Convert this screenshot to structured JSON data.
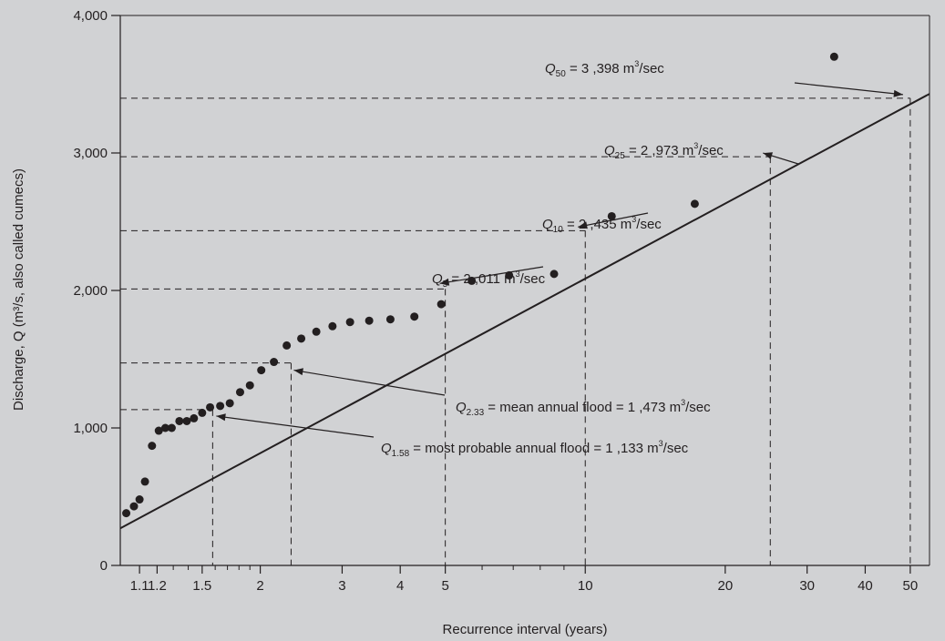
{
  "chart_data": {
    "type": "scatter",
    "xscale": "log",
    "xlabel": "Recurrence interval (years)",
    "ylabel": "Discharge, Q (m³/s, also called cumecs)",
    "ylim": [
      0,
      4000
    ],
    "xlim": [
      1.0,
      55
    ],
    "grid": false,
    "y_ticks": [
      {
        "value": 0,
        "label": "0"
      },
      {
        "value": 1000,
        "label": "1,000"
      },
      {
        "value": 2000,
        "label": "2,000"
      },
      {
        "value": 3000,
        "label": "3,000"
      },
      {
        "value": 4000,
        "label": "4,000"
      }
    ],
    "x_ticks": [
      {
        "value": 1.1,
        "label": "1.1"
      },
      {
        "value": 1.2,
        "label": "1.2"
      },
      {
        "value": 1.5,
        "label": "1.5"
      },
      {
        "value": 2,
        "label": "2"
      },
      {
        "value": 3,
        "label": "3"
      },
      {
        "value": 4,
        "label": "4"
      },
      {
        "value": 5,
        "label": "5"
      },
      {
        "value": 10,
        "label": "10"
      },
      {
        "value": 20,
        "label": "20"
      },
      {
        "value": 30,
        "label": "30"
      },
      {
        "value": 40,
        "label": "40"
      },
      {
        "value": 50,
        "label": "50"
      }
    ],
    "x_minor_ticks": [
      1.3,
      1.4,
      1.6,
      1.7,
      1.8,
      1.9,
      6,
      7,
      8,
      9
    ],
    "points": [
      {
        "x": 1.03,
        "y": 380
      },
      {
        "x": 1.07,
        "y": 430
      },
      {
        "x": 1.1,
        "y": 480
      },
      {
        "x": 1.13,
        "y": 610
      },
      {
        "x": 1.17,
        "y": 870
      },
      {
        "x": 1.21,
        "y": 980
      },
      {
        "x": 1.25,
        "y": 1000
      },
      {
        "x": 1.29,
        "y": 1000
      },
      {
        "x": 1.34,
        "y": 1050
      },
      {
        "x": 1.39,
        "y": 1050
      },
      {
        "x": 1.44,
        "y": 1070
      },
      {
        "x": 1.5,
        "y": 1110
      },
      {
        "x": 1.56,
        "y": 1150
      },
      {
        "x": 1.64,
        "y": 1160
      },
      {
        "x": 1.72,
        "y": 1180
      },
      {
        "x": 1.81,
        "y": 1260
      },
      {
        "x": 1.9,
        "y": 1310
      },
      {
        "x": 2.01,
        "y": 1420
      },
      {
        "x": 2.14,
        "y": 1480
      },
      {
        "x": 2.28,
        "y": 1600
      },
      {
        "x": 2.45,
        "y": 1650
      },
      {
        "x": 2.64,
        "y": 1700
      },
      {
        "x": 2.86,
        "y": 1740
      },
      {
        "x": 3.12,
        "y": 1770
      },
      {
        "x": 3.43,
        "y": 1780
      },
      {
        "x": 3.81,
        "y": 1790
      },
      {
        "x": 4.29,
        "y": 1810
      },
      {
        "x": 4.9,
        "y": 1900
      },
      {
        "x": 5.7,
        "y": 2070
      },
      {
        "x": 6.86,
        "y": 2110
      },
      {
        "x": 8.57,
        "y": 2120
      },
      {
        "x": 11.4,
        "y": 2540
      },
      {
        "x": 17.2,
        "y": 2630
      },
      {
        "x": 34.3,
        "y": 3700
      }
    ],
    "fit_line": {
      "x": [
        1.0,
        55
      ],
      "y": [
        270,
        3430
      ]
    },
    "reference_lines": [
      {
        "x": 1.58,
        "y": 1133
      },
      {
        "x": 2.33,
        "y": 1473
      },
      {
        "x": 5,
        "y": 2011
      },
      {
        "x": 10,
        "y": 2435
      },
      {
        "x": 25,
        "y": 2973
      },
      {
        "x": 50,
        "y": 3398
      }
    ],
    "annotations": [
      {
        "q": "Q",
        "sub": "50",
        "pre": " = 3 ,398 m",
        "sup": "3",
        "post": "/sec",
        "pointer": {
          "x": 50,
          "y": 3398
        }
      },
      {
        "q": "Q",
        "sub": "25",
        "pre": " = 2 ,973 m",
        "sup": "3",
        "post": "/sec",
        "pointer": {
          "x": 25,
          "y": 2973
        }
      },
      {
        "q": "Q",
        "sub": "10",
        "pre": " = 2 ,435 m",
        "sup": "3",
        "post": "/sec",
        "pointer": {
          "x": 10,
          "y": 2435
        }
      },
      {
        "q": "Q",
        "sub": "5",
        "pre": " = 2 ,011 m",
        "sup": "3",
        "post": "/sec",
        "pointer": {
          "x": 5,
          "y": 2011
        }
      },
      {
        "q": "Q",
        "sub": "2.33",
        "pre": "  =  mean annual flood = 1 ,473 m",
        "sup": "3",
        "post": "/sec",
        "pointer": {
          "x": 2.33,
          "y": 1473
        }
      },
      {
        "q": "Q",
        "sub": "1.58",
        "pre": " = most probable annual flood = 1 ,133 m",
        "sup": "3",
        "post": "/sec",
        "pointer": {
          "x": 1.58,
          "y": 1133
        }
      }
    ]
  }
}
